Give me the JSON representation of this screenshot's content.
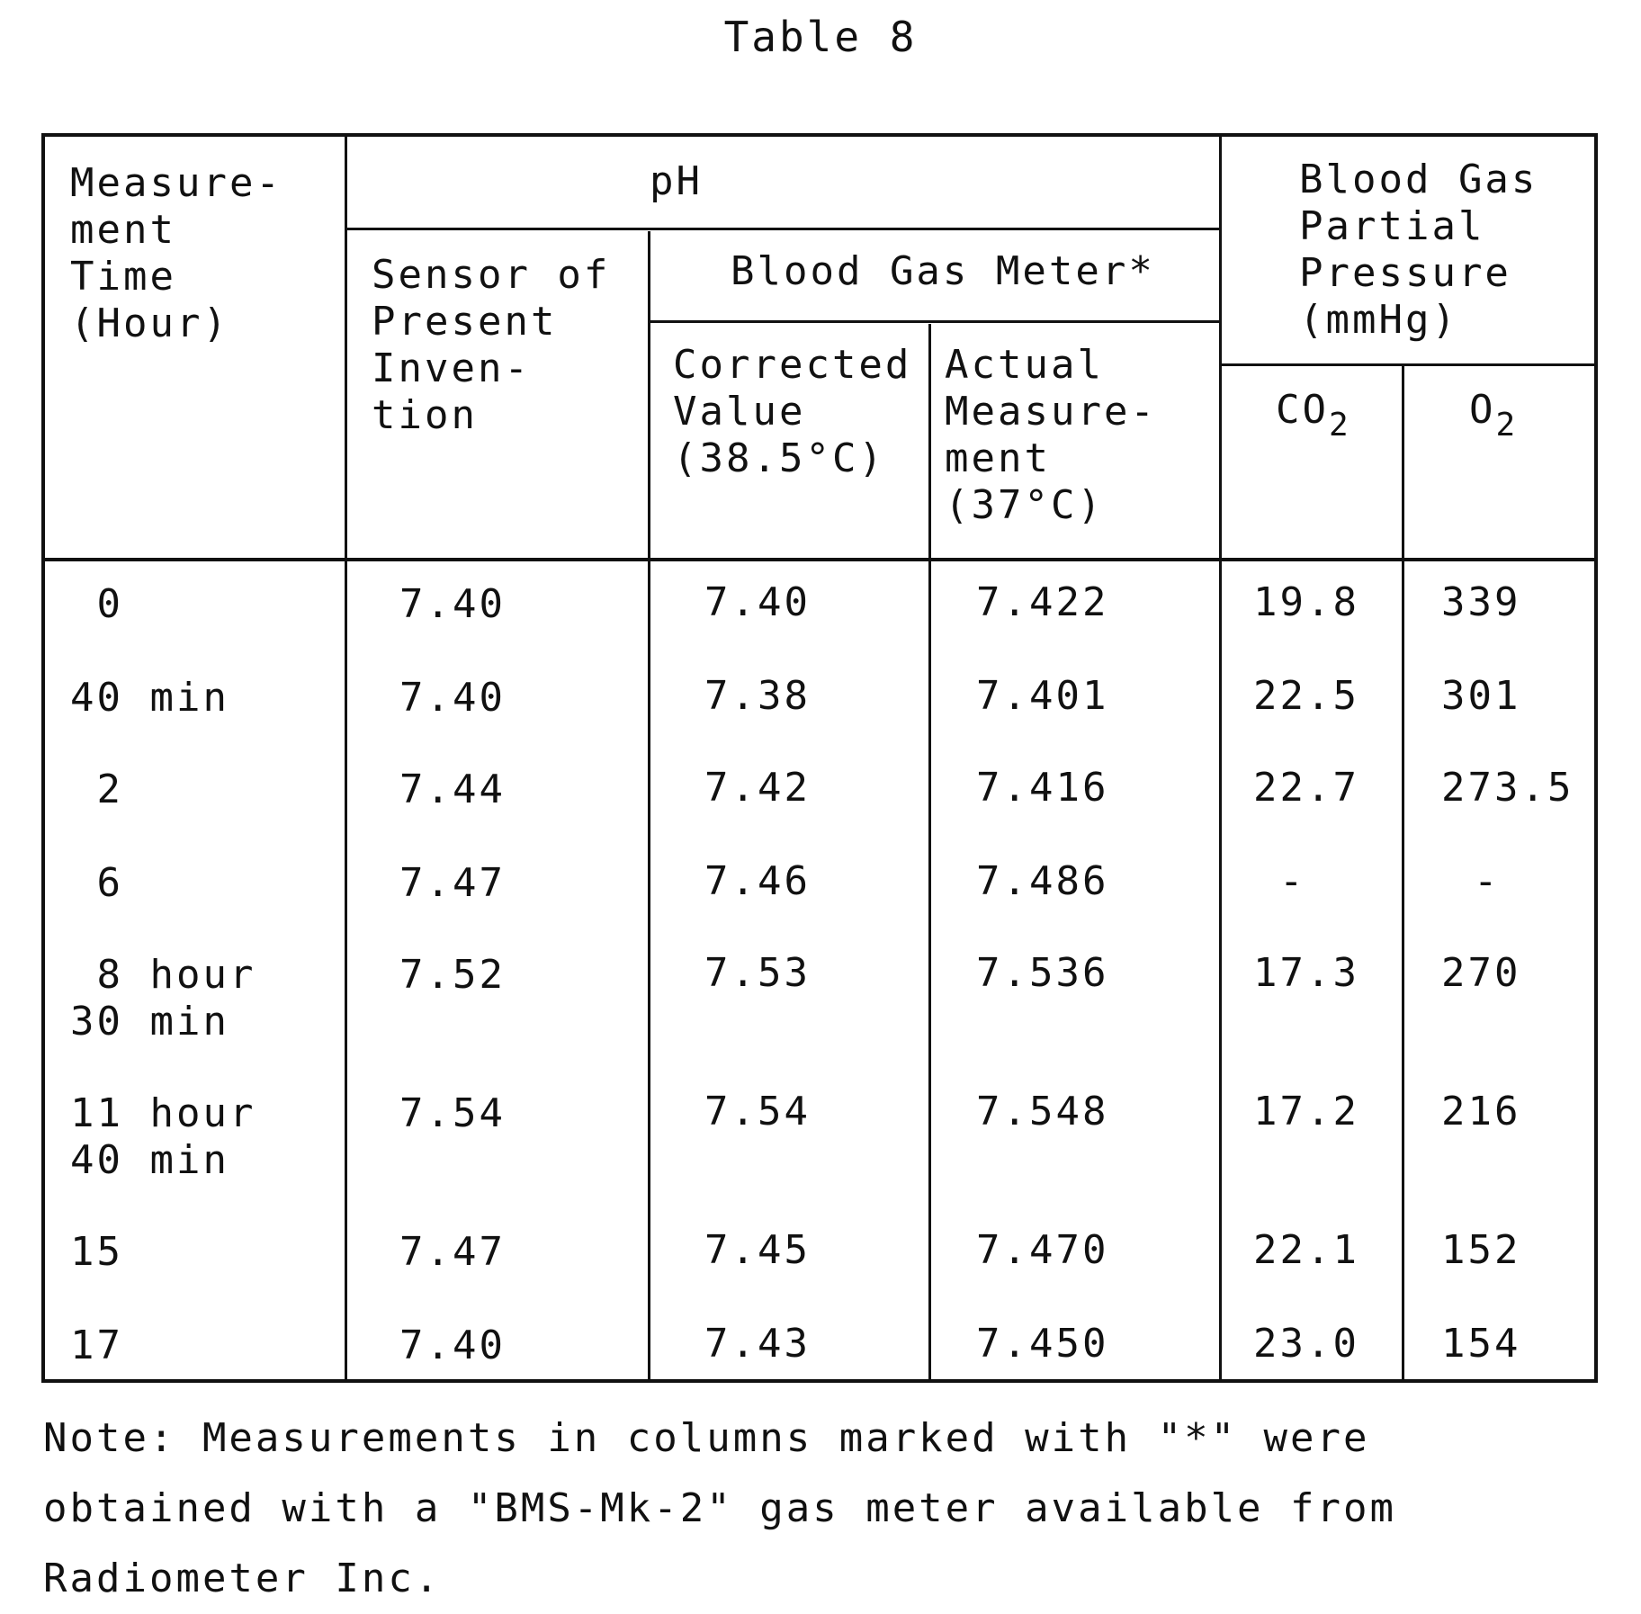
{
  "title": "Table 8",
  "headers": {
    "time": "Measure-\nment\nTime\n(Hour)",
    "ph": "pH",
    "sensor": "Sensor of\nPresent\nInven-\ntion",
    "meter": "Blood Gas Meter*",
    "corrected": "Corrected\nValue\n(38.5°C)",
    "actual": "Actual\nMeasure-\nment\n(37°C)",
    "partial": "Blood Gas\nPartial\nPressure\n(mmHg)",
    "co2_base": "CO",
    "co2_sub": "2",
    "o2_base": "O",
    "o2_sub": "2"
  },
  "rows": [
    {
      "time": " 0",
      "sensor": "7.40",
      "corrected": "7.40",
      "actual": "7.422",
      "co2": "19.8",
      "o2": "339"
    },
    {
      "time": "40 min",
      "sensor": "7.40",
      "corrected": "7.38",
      "actual": "7.401",
      "co2": "22.5",
      "o2": "301"
    },
    {
      "time": " 2",
      "sensor": "7.44",
      "corrected": "7.42",
      "actual": "7.416",
      "co2": "22.7",
      "o2": "273.5"
    },
    {
      "time": " 6",
      "sensor": "7.47",
      "corrected": "7.46",
      "actual": "7.486",
      "co2": "-",
      "o2": "-"
    },
    {
      "time": " 8 hour\n30 min",
      "sensor": "7.52",
      "corrected": "7.53",
      "actual": "7.536",
      "co2": "17.3",
      "o2": "270"
    },
    {
      "time": "11 hour\n40 min",
      "sensor": "7.54",
      "corrected": "7.54",
      "actual": "7.548",
      "co2": "17.2",
      "o2": "216"
    },
    {
      "time": "15",
      "sensor": "7.47",
      "corrected": "7.45",
      "actual": "7.470",
      "co2": "22.1",
      "o2": "152"
    },
    {
      "time": "17",
      "sensor": "7.40",
      "corrected": "7.43",
      "actual": "7.450",
      "co2": "23.0",
      "o2": "154"
    }
  ],
  "note": "Note:  Measurements in columns marked with \"*\" were\nobtained with a \"BMS-Mk-2\" gas meter available from\nRadiometer Inc."
}
